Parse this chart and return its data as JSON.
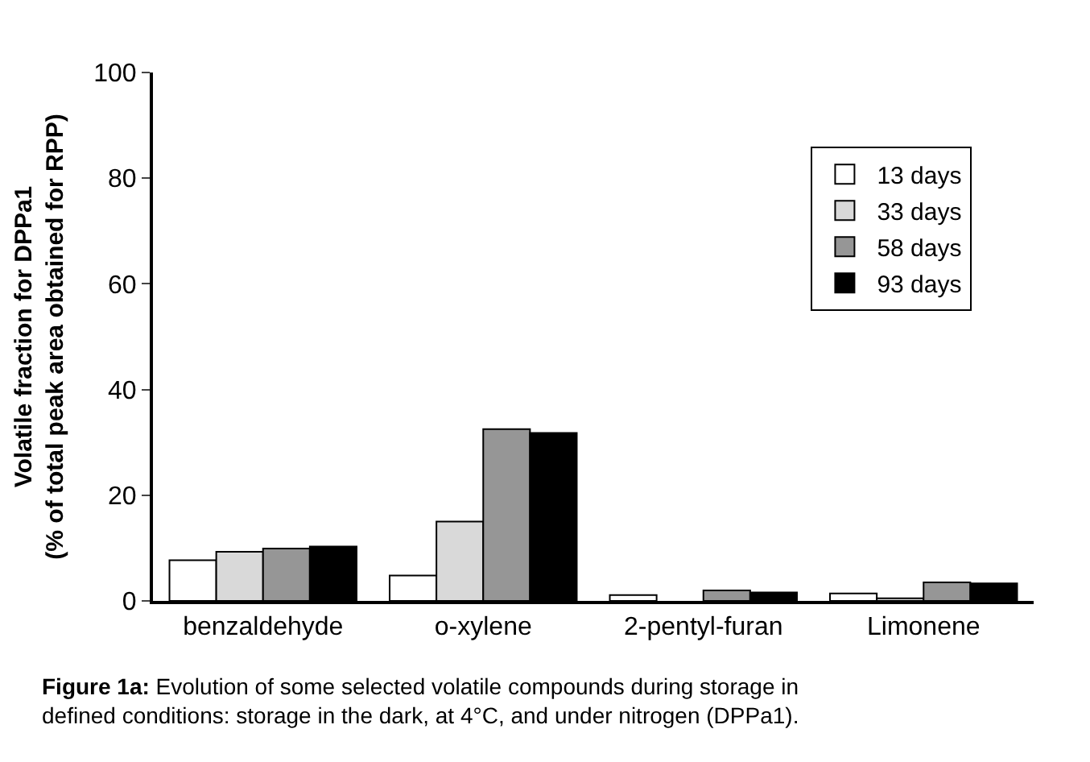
{
  "chart_data": {
    "type": "bar",
    "ylabel": "Volatile fraction for DPPa1\n(% of total peak area obtained for RPP)",
    "categories": [
      "benzaldehyde",
      "o-xylene",
      "2-pentyl-furan",
      "Limonene"
    ],
    "series": [
      {
        "name": "13 days",
        "color": "#ffffff",
        "values": [
          7.7,
          4.8,
          1.1,
          1.4
        ]
      },
      {
        "name": "33 days",
        "color": "#d9d9d9",
        "values": [
          9.3,
          15.0,
          null,
          0.5
        ]
      },
      {
        "name": "58 days",
        "color": "#969696",
        "values": [
          9.9,
          32.5,
          2.0,
          3.5
        ]
      },
      {
        "name": "93 days",
        "color": "#000000",
        "values": [
          10.3,
          31.8,
          1.6,
          3.3
        ]
      }
    ],
    "ylim": [
      0,
      100
    ],
    "yticks": [
      0,
      20,
      40,
      60,
      80,
      100
    ],
    "legend": "top right",
    "annotations": [
      "Figure 1a: Evolution of some selected volatile compounds during storage in\ndefined conditions: storage in the dark, at 4°C, and under nitrogen (DPPa1)."
    ]
  }
}
